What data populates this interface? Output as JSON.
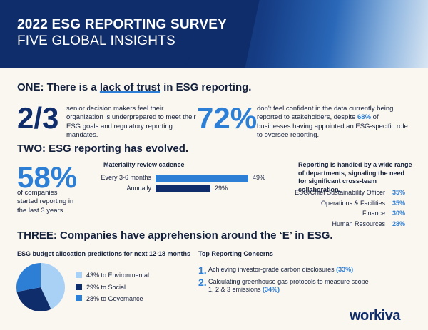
{
  "header": {
    "title_line1": "2022 ESG REPORTING SURVEY",
    "title_line2": "FIVE GLOBAL INSIGHTS"
  },
  "section_one": {
    "label": "ONE:",
    "heading_pre": "There is a",
    "heading_underlined": "lack of trust",
    "heading_post": "in ESG reporting.",
    "stat1": {
      "value": "2/3",
      "text": "senior decision makers feel their organization is underprepared to meet their ESG goals and regulatory reporting mandates."
    },
    "stat2": {
      "value": "72%",
      "text_pre": "don't feel confident in the data currently being reported to stakeholders, despite",
      "text_highlight": "68%",
      "text_post": "of businesses having appointed an ESG-specific role to oversee reporting."
    }
  },
  "section_two": {
    "label": "TWO:",
    "heading": "ESG reporting has evolved.",
    "stat": {
      "value": "58%",
      "text": "of companies started reporting in the last 3 years."
    },
    "cadence": {
      "title": "Materiality review cadence",
      "rows": [
        {
          "label": "Every 3-6 months",
          "value": 49,
          "display": "49%",
          "color": "#2d7fd6"
        },
        {
          "label": "Annually",
          "value": 29,
          "display": "29%",
          "color": "#0f2d6b"
        }
      ]
    },
    "departments": {
      "title": "Reporting is handled by a wide range of departments, signaling the need for significant cross-team collaboration.",
      "rows": [
        {
          "label": "ESG/Chief Sustainability Officer",
          "value": "35%"
        },
        {
          "label": "Operations & Facilities",
          "value": "35%"
        },
        {
          "label": "Finance",
          "value": "30%"
        },
        {
          "label": "Human Resources",
          "value": "28%"
        }
      ]
    }
  },
  "section_three": {
    "label": "THREE:",
    "heading": "Companies have apprehension around the ‘E’ in ESG.",
    "budget": {
      "title": "ESG budget allocation predictions for next 12-18 months",
      "slices": [
        {
          "label": "43% to Environmental",
          "value": 43,
          "color": "#a9d0f5"
        },
        {
          "label": "29% to Social",
          "value": 29,
          "color": "#0f2d6b"
        },
        {
          "label": "28% to Governance",
          "value": 28,
          "color": "#2d7fd6"
        }
      ]
    },
    "concerns": {
      "title": "Top Reporting Concerns",
      "items": [
        {
          "num": "1.",
          "text": "Achieving investor-grade carbon disclosures",
          "pct": "(33%)"
        },
        {
          "num": "2.",
          "text": "Calculating greenhouse gas protocols to measure scope 1, 2 & 3 emissions",
          "pct": "(34%)"
        }
      ]
    }
  },
  "brand": {
    "logo": "workiva"
  }
}
